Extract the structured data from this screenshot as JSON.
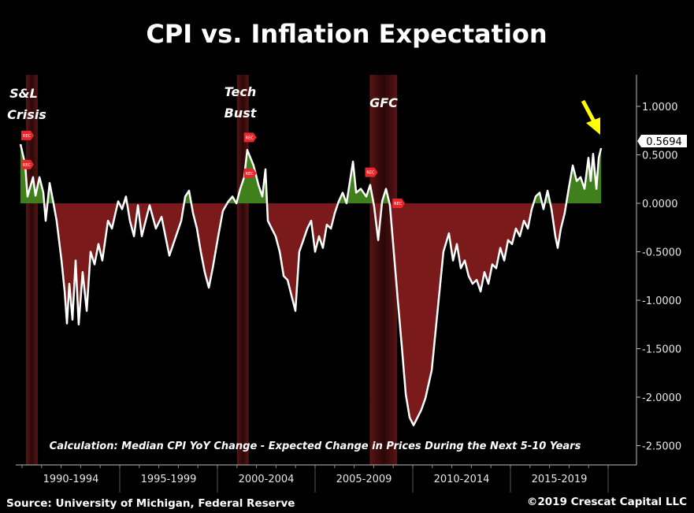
{
  "chart_data": {
    "type": "area",
    "title": "CPI vs. Inflation Expectation",
    "subtitle": "Calculation: Median CPI YoY Change - Expected Change in Prices During the Next 5-10 Years",
    "ylabel": "",
    "xlabel": "",
    "ylim": [
      -2.6,
      1.25
    ],
    "xlim": [
      1989.9,
      2020.3
    ],
    "y_ticks": [
      "1.0000",
      "0.5000",
      "0.0000",
      "-0.5000",
      "-1.0000",
      "-1.5000",
      "-2.0000",
      "-2.5000"
    ],
    "y_tick_values": [
      1.0,
      0.5,
      0.0,
      -0.5,
      -1.0,
      -1.5,
      -2.0,
      -2.5
    ],
    "x_periods": [
      "1990-1994",
      "1995-1999",
      "2000-2004",
      "2005-2009",
      "2010-2014",
      "2015-2019"
    ],
    "last_value_label": "0.5694",
    "colors": {
      "line": "#ffffff",
      "positive_fill": "#3f7f1c",
      "negative_fill": "#7a1a1a",
      "recession": "#4d1212",
      "arrow": "#ffff00",
      "rec_marker": "#e8262b"
    },
    "series": [
      {
        "name": "Median CPI YoY - Expected 5-10Y Inflation",
        "x": [
          1989.92,
          1990.16,
          1990.28,
          1990.56,
          1990.69,
          1990.89,
          1991.09,
          1991.21,
          1991.41,
          1991.61,
          1991.77,
          1992.02,
          1992.18,
          1992.3,
          1992.42,
          1992.58,
          1992.74,
          1992.9,
          1993.1,
          1993.31,
          1993.51,
          1993.71,
          1993.91,
          1994.11,
          1994.4,
          1994.6,
          1994.92,
          1995.12,
          1995.32,
          1995.52,
          1995.73,
          1995.93,
          1996.13,
          1996.53,
          1996.85,
          1997.14,
          1997.34,
          1997.54,
          1997.74,
          1998.15,
          1998.35,
          1998.55,
          1998.75,
          1998.95,
          1999.15,
          1999.35,
          1999.56,
          1999.76,
          2000.04,
          2000.28,
          2000.56,
          2000.77,
          2000.97,
          2001.17,
          2001.37,
          2001.53,
          2001.69,
          2001.85,
          2002.1,
          2002.3,
          2002.46,
          2002.58,
          2002.78,
          2002.98,
          2003.19,
          2003.39,
          2003.59,
          2003.79,
          2003.99,
          2004.19,
          2004.4,
          2004.6,
          2004.8,
          2005.0,
          2005.2,
          2005.4,
          2005.6,
          2005.81,
          2006.01,
          2006.21,
          2006.41,
          2006.61,
          2006.94,
          2007.1,
          2007.34,
          2007.62,
          2007.82,
          2008.02,
          2008.23,
          2008.43,
          2008.63,
          2008.83,
          2009.03,
          2009.23,
          2009.44,
          2009.64,
          2009.84,
          2010.04,
          2010.24,
          2010.44,
          2010.65,
          2010.97,
          2011.25,
          2011.57,
          2011.85,
          2012.06,
          2012.26,
          2012.46,
          2012.66,
          2012.86,
          2013.06,
          2013.27,
          2013.47,
          2013.67,
          2013.87,
          2014.07,
          2014.27,
          2014.48,
          2014.68,
          2014.88,
          2015.08,
          2015.28,
          2015.48,
          2015.69,
          2015.89,
          2016.09,
          2016.29,
          2016.49,
          2016.69,
          2016.9,
          2017.1,
          2017.3,
          2017.42,
          2017.58,
          2017.78,
          2017.98,
          2018.19,
          2018.39,
          2018.59,
          2018.79,
          2018.99,
          2019.11,
          2019.23,
          2019.4,
          2019.52,
          2019.64
        ],
        "values": [
          0.61,
          0.4,
          0.07,
          0.27,
          0.08,
          0.27,
          0.11,
          -0.18,
          0.21,
          0.0,
          -0.18,
          -0.59,
          -0.91,
          -1.24,
          -0.83,
          -1.2,
          -0.59,
          -1.25,
          -0.71,
          -1.11,
          -0.5,
          -0.63,
          -0.42,
          -0.59,
          -0.18,
          -0.26,
          0.02,
          -0.06,
          0.07,
          -0.18,
          -0.34,
          -0.02,
          -0.34,
          -0.02,
          -0.26,
          -0.14,
          -0.34,
          -0.54,
          -0.42,
          -0.18,
          0.07,
          0.13,
          -0.1,
          -0.26,
          -0.5,
          -0.71,
          -0.87,
          -0.67,
          -0.34,
          -0.08,
          0.02,
          0.07,
          0.0,
          0.15,
          0.27,
          0.55,
          0.47,
          0.39,
          0.19,
          0.07,
          0.35,
          -0.18,
          -0.26,
          -0.34,
          -0.5,
          -0.75,
          -0.79,
          -0.95,
          -1.11,
          -0.5,
          -0.38,
          -0.26,
          -0.18,
          -0.5,
          -0.34,
          -0.46,
          -0.22,
          -0.26,
          -0.1,
          0.02,
          0.11,
          0.0,
          0.43,
          0.11,
          0.15,
          0.07,
          0.19,
          -0.03,
          -0.38,
          0.02,
          0.15,
          -0.02,
          -0.5,
          -0.99,
          -1.48,
          -1.97,
          -2.21,
          -2.29,
          -2.21,
          -2.13,
          -2.01,
          -1.72,
          -1.15,
          -0.5,
          -0.31,
          -0.59,
          -0.42,
          -0.67,
          -0.59,
          -0.75,
          -0.83,
          -0.79,
          -0.91,
          -0.71,
          -0.83,
          -0.63,
          -0.67,
          -0.46,
          -0.59,
          -0.38,
          -0.42,
          -0.26,
          -0.34,
          -0.18,
          -0.26,
          -0.06,
          0.07,
          0.11,
          -0.06,
          0.13,
          -0.06,
          -0.34,
          -0.46,
          -0.26,
          -0.1,
          0.15,
          0.39,
          0.23,
          0.27,
          0.15,
          0.47,
          0.23,
          0.51,
          0.15,
          0.47,
          0.5694
        ]
      }
    ],
    "recessions": [
      {
        "label": "S&L Crisis",
        "start": 1990.2,
        "end": 1990.8
      },
      {
        "label": "Tech Bust",
        "start": 2001.0,
        "end": 2001.6
      },
      {
        "label": "GFC",
        "start": 2007.8,
        "end": 2009.2
      }
    ],
    "rec_marker_label": "REC",
    "annotations": [
      {
        "text": "S&L"
      },
      {
        "text": "Crisis"
      },
      {
        "text": "Tech"
      },
      {
        "text": "Bust"
      },
      {
        "text": "GFC"
      }
    ],
    "grid": false,
    "legend": "none"
  },
  "footer": {
    "source": "Source: University of Michigan, Federal Reserve",
    "copyright": "©2019 Crescat Capital LLC"
  }
}
